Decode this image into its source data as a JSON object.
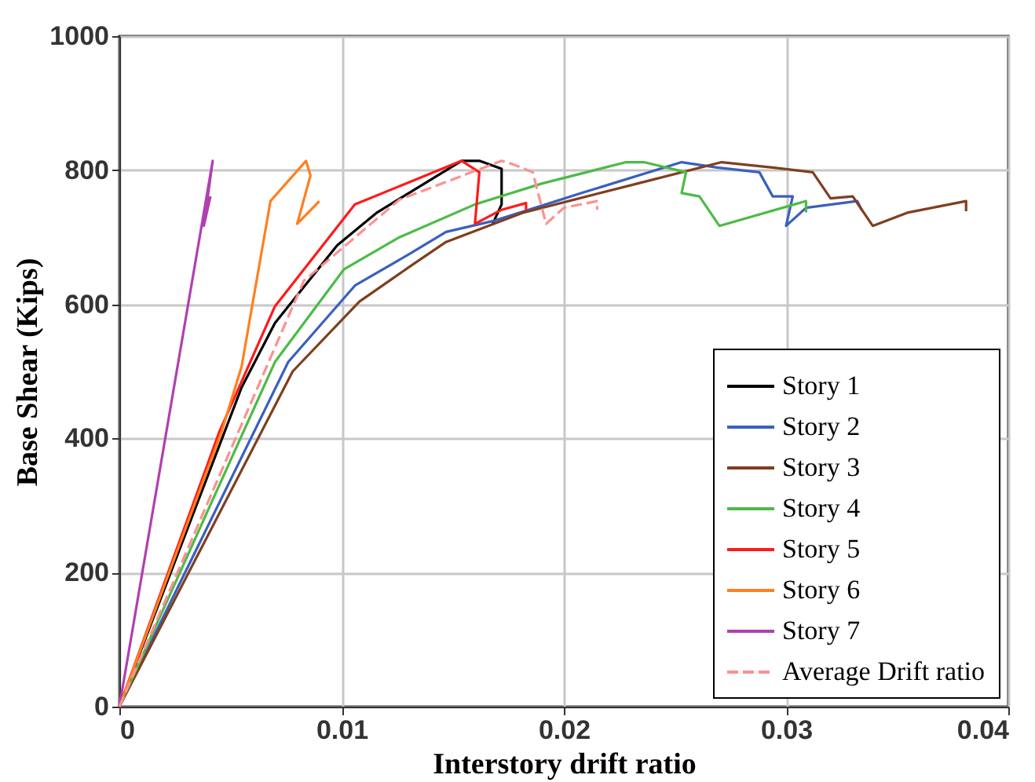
{
  "chart_data": {
    "type": "line",
    "xlabel": "Interstory drift ratio",
    "ylabel": "Base Shear (Kips)",
    "xlim": [
      0,
      0.04
    ],
    "xticks": [
      0,
      0.01,
      0.02,
      0.03,
      0.04
    ],
    "ylim": [
      0,
      1000
    ],
    "yticks": [
      0,
      200,
      400,
      600,
      800,
      1000
    ],
    "grid": true,
    "legend": "bottom right",
    "line_style": "solid",
    "series": [
      {
        "name": "Story 1",
        "color": "#000000",
        "x": [
          0,
          0.0055,
          0.007,
          0.0098,
          0.0116,
          0.0154,
          0.0162,
          0.0172,
          0.0172,
          0.0168
        ],
        "values": [
          0,
          476,
          572,
          688,
          737,
          814,
          814,
          802,
          749,
          720
        ]
      },
      {
        "name": "Story 2",
        "color": "#3a5fbf",
        "x": [
          0,
          0.0076,
          0.0106,
          0.0131,
          0.0147,
          0.0169,
          0.0208,
          0.0253,
          0.0269,
          0.0288,
          0.0294,
          0.0303,
          0.03,
          0.0309,
          0.0332,
          0.0334
        ],
        "values": [
          0,
          514,
          628,
          676,
          708,
          725,
          766,
          812,
          804,
          797,
          761,
          761,
          717,
          744,
          754,
          741
        ]
      },
      {
        "name": "Story 3",
        "color": "#7f3f1f",
        "x": [
          0,
          0.0078,
          0.0108,
          0.0131,
          0.0147,
          0.0182,
          0.0233,
          0.0271,
          0.0294,
          0.0312,
          0.032,
          0.033,
          0.0339,
          0.0355,
          0.0381,
          0.0381
        ],
        "values": [
          0,
          500,
          604,
          657,
          693,
          737,
          780,
          812,
          804,
          797,
          758,
          761,
          717,
          737,
          754,
          739
        ]
      },
      {
        "name": "Story 4",
        "color": "#4cbb47",
        "x": [
          0,
          0.007,
          0.0101,
          0.0126,
          0.016,
          0.019,
          0.0228,
          0.0236,
          0.0255,
          0.0253,
          0.0261,
          0.027,
          0.0309,
          0.0309
        ],
        "values": [
          0,
          514,
          652,
          700,
          749,
          780,
          812,
          812,
          797,
          766,
          761,
          717,
          754,
          737
        ]
      },
      {
        "name": "Story 5",
        "color": "#ff1a1a",
        "x": [
          0,
          0.0045,
          0.007,
          0.0106,
          0.0154,
          0.0162,
          0.016,
          0.0172,
          0.0183,
          0.0183
        ],
        "values": [
          0,
          410,
          597,
          749,
          814,
          797,
          720,
          741,
          751,
          741
        ]
      },
      {
        "name": "Story 6",
        "color": "#ff7f1f",
        "x": [
          0,
          0.0046,
          0.0055,
          0.0068,
          0.0084,
          0.0086,
          0.008,
          0.009
        ],
        "values": [
          0,
          410,
          507,
          754,
          814,
          792,
          720,
          754
        ]
      },
      {
        "name": "Story 7",
        "color": "#b040b0",
        "x": [
          0,
          0.0042,
          0.0038,
          0.0041
        ],
        "values": [
          0,
          814,
          717,
          761
        ]
      },
      {
        "name": "Average Drift ratio",
        "color": "#ff9090",
        "line_style": "dashed",
        "x": [
          0,
          0.0083,
          0.0126,
          0.0172,
          0.0177,
          0.0186,
          0.0192,
          0.02,
          0.0215,
          0.0215
        ],
        "values": [
          0,
          635,
          756,
          814,
          809,
          797,
          720,
          744,
          754,
          741
        ]
      }
    ]
  }
}
